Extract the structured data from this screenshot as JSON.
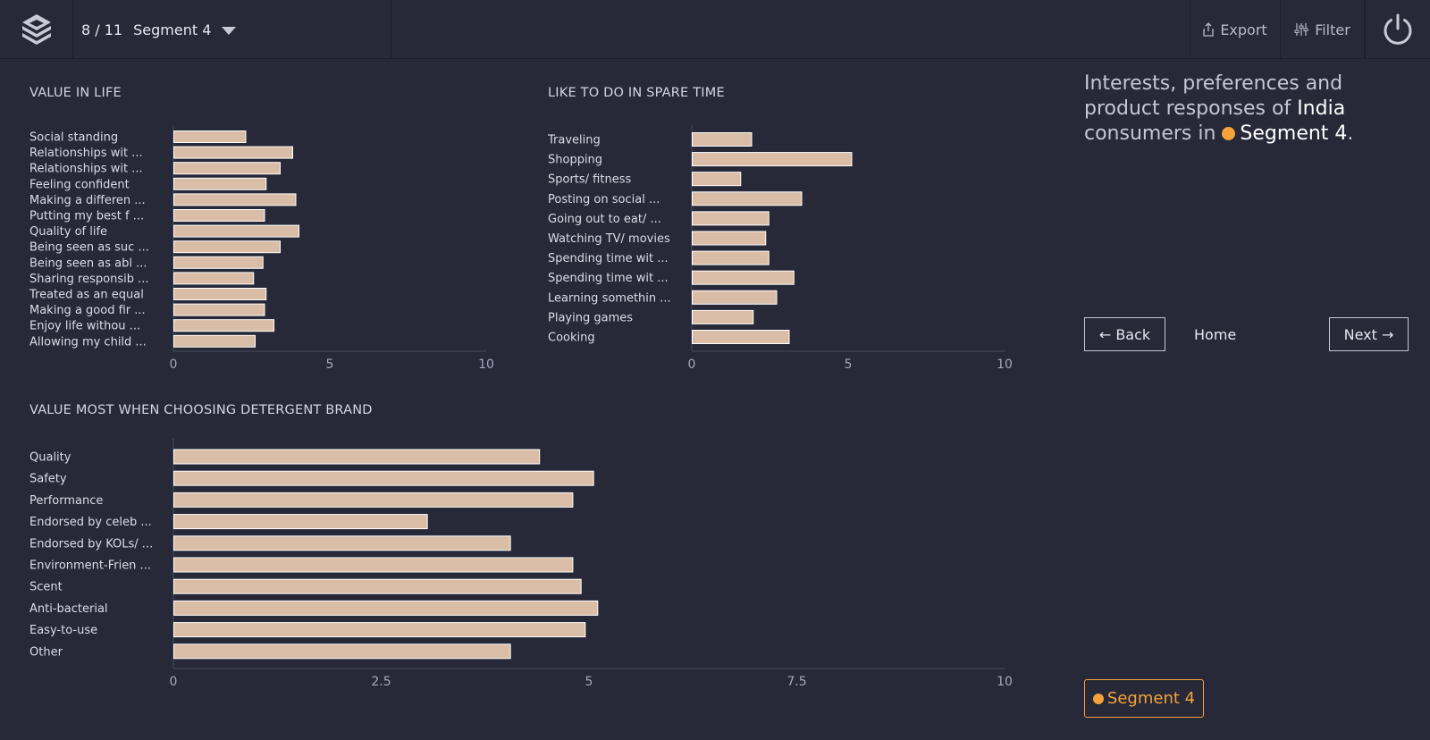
{
  "header": {
    "progress": "8 / 11",
    "segment": "Segment 4",
    "export_label": "Export",
    "filter_label": "Filter"
  },
  "panel": {
    "headline_pre": "Interests, preferences and product responses of ",
    "country": "India",
    "headline_mid": " consumers in ",
    "segment": "Segment 4",
    "headline_end": ".",
    "back_label": "← Back",
    "home_label": "Home",
    "next_label": "Next →",
    "badge_label": "Segment 4"
  },
  "colors": {
    "background": "#272838",
    "bar_fill": "#d9bda6",
    "bar_stroke": "#ffffff",
    "accent": "#f5a33a"
  },
  "chart_data": [
    {
      "type": "bar",
      "orientation": "horizontal",
      "title": "VALUE IN LIFE",
      "categories": [
        "Social standing",
        "Relationships wit ...",
        "Relationships wit ...",
        "Feeling confident",
        "Making a differen ...",
        "Putting my best f ...",
        "Quality of life",
        "Being seen as suc ...",
        "Being seen as abl ...",
        "Sharing responsib ...",
        "Treated as an equal",
        "Making a good fir ...",
        "Enjoy life withou ...",
        "Allowing my child ..."
      ],
      "values": [
        2.3,
        3.8,
        3.4,
        2.95,
        3.9,
        2.9,
        4.0,
        3.4,
        2.85,
        2.55,
        2.95,
        2.9,
        3.2,
        2.6
      ],
      "xlim": [
        0,
        10
      ],
      "xticks": [
        0,
        5,
        10
      ]
    },
    {
      "type": "bar",
      "orientation": "horizontal",
      "title": "LIKE TO DO IN SPARE TIME",
      "categories": [
        "Traveling",
        "Shopping",
        "Sports/ fitness",
        "Posting on social ...",
        "Going out to eat/ ...",
        "Watching TV/ movies",
        "Spending time wit ...",
        "Spending time wit ...",
        "Learning somethin ...",
        "Playing games",
        "Cooking"
      ],
      "values": [
        1.9,
        5.1,
        1.55,
        3.5,
        2.45,
        2.35,
        2.45,
        3.25,
        2.7,
        1.95,
        3.1
      ],
      "xlim": [
        0,
        10
      ],
      "xticks": [
        0,
        5,
        10
      ]
    },
    {
      "type": "bar",
      "orientation": "horizontal",
      "title": "VALUE MOST WHEN CHOOSING DETERGENT BRAND",
      "categories": [
        "Quality",
        "Safety",
        "Performance",
        "Endorsed by celeb ...",
        "Endorsed by KOLs/ ...",
        "Environment-Frien ...",
        "Scent",
        "Anti-bacterial",
        "Easy-to-use",
        "Other"
      ],
      "values": [
        4.4,
        5.05,
        4.8,
        3.05,
        4.05,
        4.8,
        4.9,
        5.1,
        4.95,
        4.05
      ],
      "xlim": [
        0,
        10
      ],
      "xticks": [
        0,
        2.5,
        5,
        7.5,
        10
      ]
    }
  ]
}
